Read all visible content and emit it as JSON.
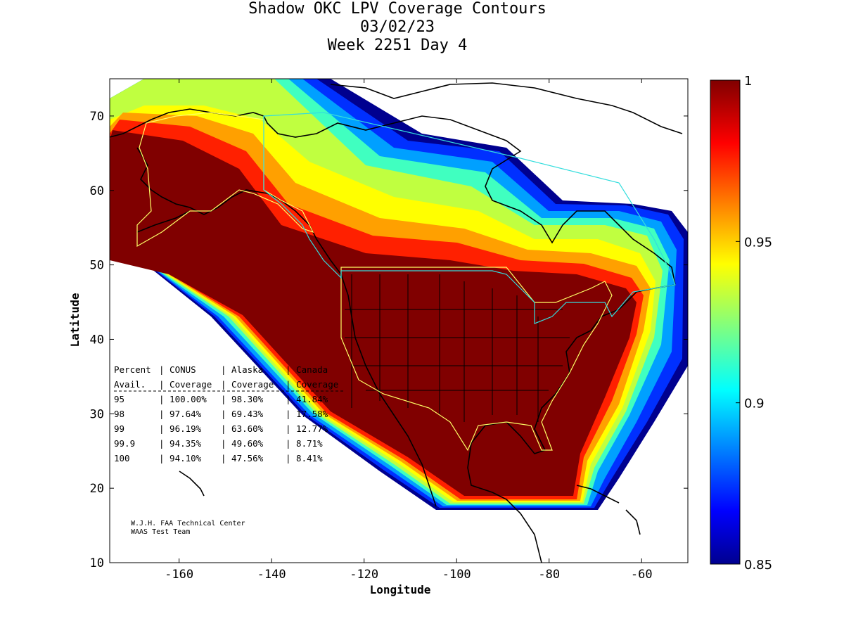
{
  "title": [
    "Shadow OKC LPV Coverage Contours",
    "03/02/23",
    "Week 2251 Day 4"
  ],
  "axes": {
    "xlabel": "Longitude",
    "ylabel": "Latitude",
    "xticks": [
      "-160",
      "-140",
      "-120",
      "-100",
      "-80",
      "-60"
    ],
    "yticks": [
      "70",
      "60",
      "50",
      "40",
      "30",
      "20",
      "10"
    ],
    "xlim": [
      -175,
      -50
    ],
    "ylim": [
      10,
      75
    ]
  },
  "colorbar": {
    "ticks": [
      "1",
      "0.95",
      "0.9",
      "0.85"
    ],
    "range": [
      0.85,
      1
    ],
    "colormap": "jet"
  },
  "coverage_table": {
    "header1": [
      "Percent",
      "CONUS",
      "Alaska",
      "Canada"
    ],
    "header2": [
      "Avail.",
      "Coverage",
      "Coverage",
      "Coverage"
    ],
    "rows": [
      [
        "95",
        "100.00%",
        "98.30%",
        "41.84%"
      ],
      [
        "98",
        "97.64%",
        "69.43%",
        "17.58%"
      ],
      [
        "99",
        "96.19%",
        "63.60%",
        "12.77%"
      ],
      [
        "99.9",
        "94.35%",
        "49.60%",
        "8.71%"
      ],
      [
        "100",
        "94.10%",
        "47.56%",
        "8.41%"
      ]
    ]
  },
  "credits": [
    "W.J.H. FAA Technical Center",
    "WAAS Test Team"
  ],
  "colors": {
    "full_coverage": "#800000",
    "conus_outline": "#ffff66",
    "canada_outline": "#33dddd",
    "coastline": "#000000"
  }
}
